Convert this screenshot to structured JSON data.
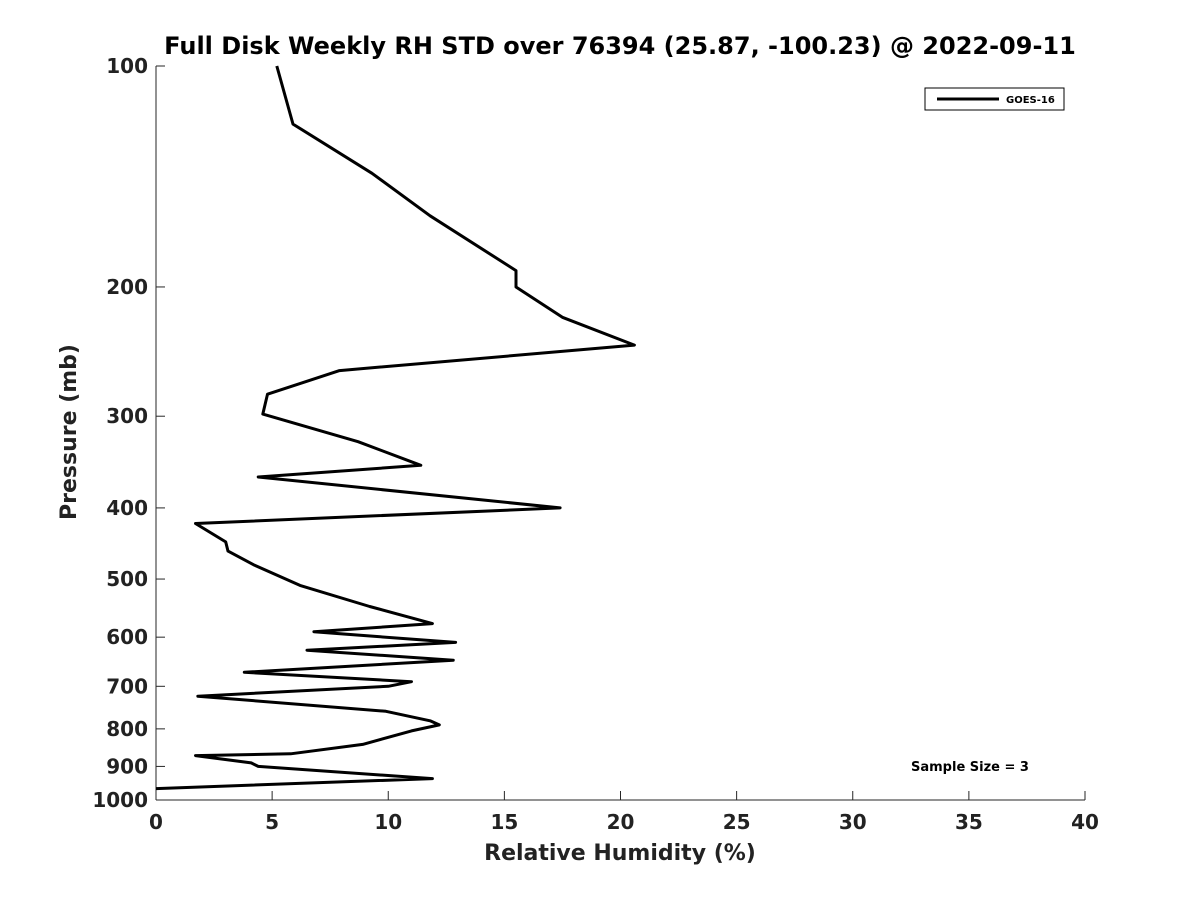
{
  "chart_data": {
    "type": "line",
    "title": "Full Disk Weekly RH STD over 76394 (25.87, -100.23) @ 2022-09-11",
    "xlabel": "Relative Humidity (%)",
    "ylabel": "Pressure (mb)",
    "xlim": [
      0,
      40
    ],
    "ylim": [
      100,
      1000
    ],
    "yscale": "log",
    "yaxis_reversed": true,
    "grid": false,
    "x_ticks": [
      0,
      5,
      10,
      15,
      20,
      25,
      30,
      35,
      40
    ],
    "x_tick_labels": [
      "0",
      "5",
      "10",
      "15",
      "20",
      "25",
      "30",
      "35",
      "40"
    ],
    "y_ticks": [
      100,
      200,
      300,
      400,
      500,
      600,
      700,
      800,
      900,
      1000
    ],
    "y_tick_labels": [
      "100",
      "200",
      "300",
      "400",
      "500",
      "600",
      "700",
      "800",
      "900",
      "1000"
    ],
    "legend": {
      "position": "top-right",
      "entries": [
        "GOES-16"
      ]
    },
    "annotation": "Sample Size = 3",
    "series": [
      {
        "name": "GOES-16",
        "color": "#000000",
        "x": [
          5.2,
          5.9,
          9.3,
          11.8,
          15.5,
          15.5,
          15.6,
          17.5,
          20.6,
          7.9,
          4.8,
          4.6,
          8.7,
          11.4,
          4.4,
          17.4,
          1.7,
          3.0,
          3.1,
          4.2,
          6.2,
          9.2,
          11.9,
          6.8,
          12.9,
          6.5,
          12.8,
          3.8,
          11.0,
          10.0,
          1.8,
          9.9,
          11.8,
          12.2,
          11.0,
          8.9,
          5.8,
          1.7,
          4.1,
          4.4,
          11.9,
          0.0
        ],
        "y": [
          100,
          120,
          140,
          160,
          190,
          200,
          201,
          220,
          240,
          260,
          280,
          298,
          325,
          350,
          363,
          400,
          420,
          445,
          458,
          478,
          510,
          545,
          575,
          590,
          610,
          625,
          645,
          670,
          690,
          700,
          722,
          757,
          780,
          790,
          805,
          840,
          865,
          870,
          890,
          900,
          935,
          965
        ]
      }
    ]
  }
}
